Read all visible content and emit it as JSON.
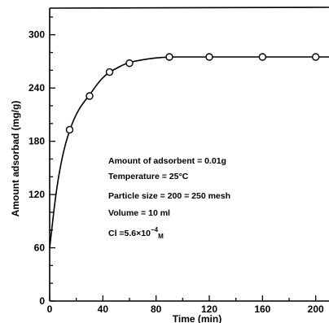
{
  "chart_data": {
    "type": "line",
    "xlabel": "Time (min)",
    "ylabel": "Amount adsorbad (mg/g)",
    "xlim": [
      0,
      210
    ],
    "ylim": [
      0,
      330
    ],
    "x_ticks": [
      0,
      40,
      80,
      120,
      160,
      200
    ],
    "y_ticks": [
      0,
      60,
      120,
      180,
      240,
      300
    ],
    "grid": false,
    "series": [
      {
        "marker": "open-circle",
        "x": [
          0,
          15,
          30,
          45,
          60,
          90,
          120,
          160,
          200
        ],
        "y": [
          60,
          193,
          231,
          258,
          268,
          275,
          275,
          275,
          275
        ]
      }
    ],
    "fit_curve": {
      "x": [
        0,
        5,
        10,
        15,
        20,
        25,
        30,
        35,
        40,
        45,
        50,
        55,
        60,
        70,
        80,
        90,
        100,
        120,
        140,
        160,
        180,
        200,
        210
      ],
      "y": [
        60,
        126,
        167,
        193,
        211,
        223,
        232,
        243,
        252,
        258,
        262,
        266,
        269,
        272,
        274,
        275,
        275,
        275,
        275,
        275,
        275,
        275,
        275
      ]
    },
    "annotations": {
      "line1": "Amount of adsorbent = 0.01g",
      "line2": "Temperature = 25°C",
      "line3": "Particle size = 200 = 250 mesh",
      "line4": "Volume = 10 ml",
      "line5_main": "Cl =5.6×10",
      "line5_sup": "−4",
      "line5_sub": "M"
    }
  }
}
